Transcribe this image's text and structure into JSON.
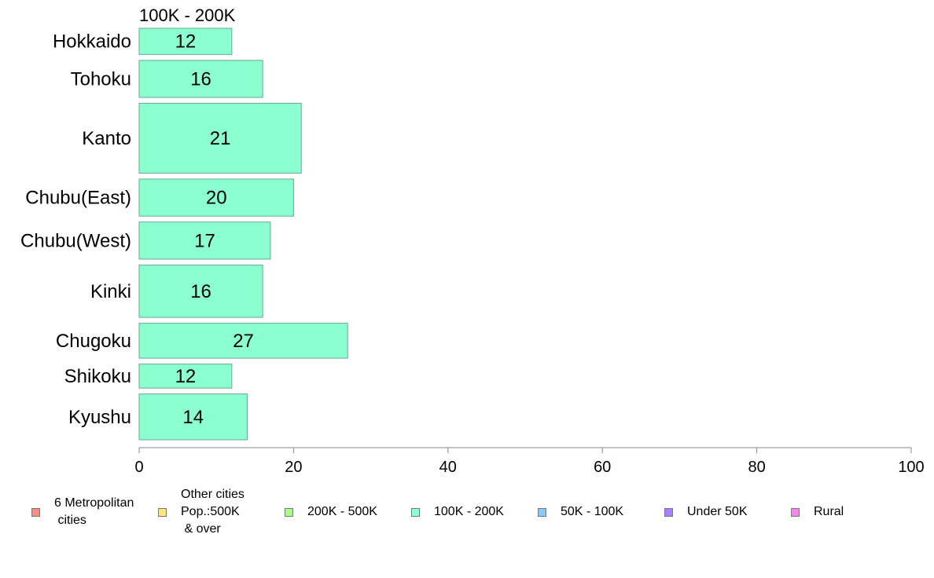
{
  "chart_data": {
    "type": "bar",
    "orientation": "horizontal",
    "title": "100K - 200K",
    "categories": [
      "Hokkaido",
      "Tohoku",
      "Kanto",
      "Chubu(East)",
      "Chubu(West)",
      "Kinki",
      "Chugoku",
      "Shikoku",
      "Kyushu"
    ],
    "values": [
      12,
      16,
      21,
      20,
      17,
      16,
      27,
      12,
      14
    ],
    "data_labels": [
      "12",
      "16",
      "21",
      "20",
      "17",
      "16",
      "27",
      "12",
      "14"
    ],
    "relative_bar_widths": [
      0.6,
      0.85,
      1.6,
      0.85,
      0.85,
      1.2,
      0.8,
      0.55,
      1.05
    ],
    "xlim": [
      0,
      100
    ],
    "x_ticks": [
      0,
      20,
      40,
      60,
      80,
      100
    ],
    "x_tick_labels": [
      "0",
      "20",
      "40",
      "60",
      "80",
      "100"
    ],
    "bar_color": "#8cffd1",
    "bar_edge_color": "#66aa90",
    "grid": false,
    "legend_position": "bottom",
    "legend": [
      {
        "label": "6 Metropolitan\n cities",
        "color": "#ff8a80"
      },
      {
        "label": "Other cities\nPop.:500K\n & over",
        "color": "#ffe680"
      },
      {
        "label": "200K - 500K",
        "color": "#a6ff80"
      },
      {
        "label": "100K - 200K",
        "color": "#8cffd1"
      },
      {
        "label": "50K - 100K",
        "color": "#80ccff"
      },
      {
        "label": "Under 50K",
        "color": "#a680ff"
      },
      {
        "label": "Rural",
        "color": "#ff80f0"
      }
    ]
  }
}
